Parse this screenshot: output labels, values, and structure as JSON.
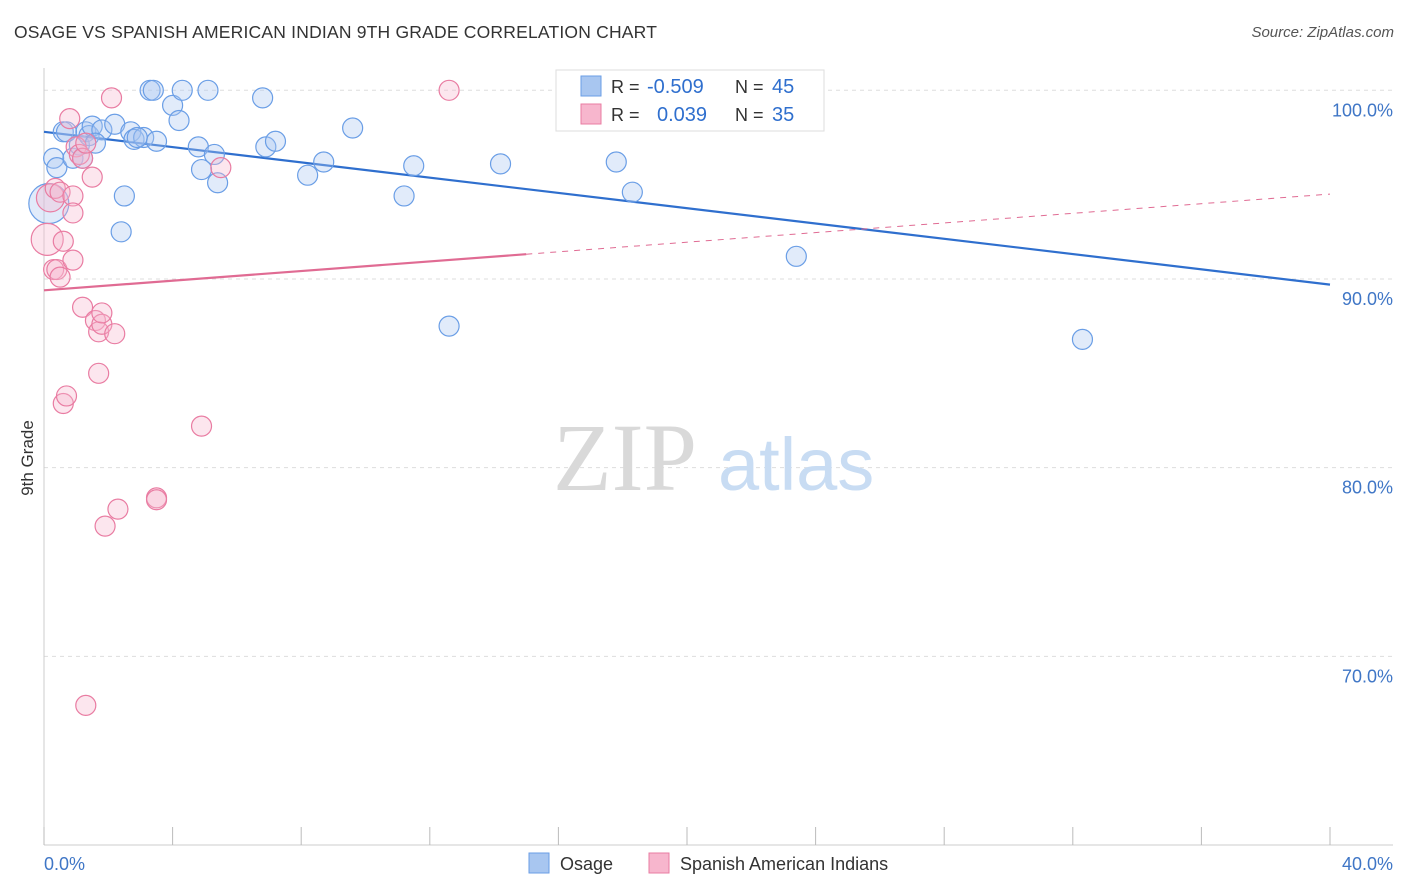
{
  "header": {
    "title": "OSAGE VS SPANISH AMERICAN INDIAN 9TH GRADE CORRELATION CHART",
    "source": "Source: ZipAtlas.com"
  },
  "colors": {
    "blue": "#6a9ee6",
    "blue_fill": "rgba(168,198,240,0.35)",
    "blue_line": "#2f6fce",
    "pink": "#e97ca2",
    "pink_fill": "rgba(247,182,205,0.35)",
    "pink_line": "#e06b93",
    "grid": "#dddddd",
    "axis_text": "#3f76c6"
  },
  "watermark": {
    "zip": "ZIP",
    "atlas": "atlas"
  },
  "legend": {
    "rows": [
      {
        "r_label": "R = ",
        "r_value": "-0.509",
        "n_label": "N = ",
        "n_value": "45"
      },
      {
        "r_label": "R = ",
        "r_value": "0.039",
        "n_label": "N = ",
        "n_value": "35"
      }
    ]
  },
  "chart_data": {
    "type": "scatter",
    "title": "OSAGE VS SPANISH AMERICAN INDIAN 9TH GRADE CORRELATION CHART",
    "xlabel": "",
    "ylabel": "9th Grade",
    "xlim": [
      0,
      40
    ],
    "ylim": [
      60,
      101.5
    ],
    "x_tick_labels": [
      "0.0%",
      "40.0%"
    ],
    "y_ticks": [
      70,
      80,
      90,
      100
    ],
    "y_tick_labels": [
      "70.0%",
      "80.0%",
      "90.0%",
      "100.0%"
    ],
    "grid": true,
    "legend_position": "top-center",
    "series": [
      {
        "name": "Osage",
        "color": "#6a9ee6",
        "trend": {
          "x0": 0,
          "y0": 97.8,
          "x1": 40,
          "y1": 89.7,
          "dash_from": null
        },
        "points": [
          [
            0.3,
            96.4
          ],
          [
            0.4,
            95.9
          ],
          [
            0.6,
            97.8
          ],
          [
            0.9,
            96.4
          ],
          [
            1.1,
            97.1
          ],
          [
            1.2,
            96.4
          ],
          [
            1.3,
            97.8
          ],
          [
            1.4,
            97.6
          ],
          [
            1.5,
            98.1
          ],
          [
            1.8,
            97.9
          ],
          [
            2.2,
            98.2
          ],
          [
            2.4,
            92.5
          ],
          [
            2.5,
            94.4
          ],
          [
            2.7,
            97.8
          ],
          [
            2.8,
            97.4
          ],
          [
            3.1,
            97.5
          ],
          [
            3.3,
            100.0
          ],
          [
            3.4,
            100.0
          ],
          [
            3.5,
            97.3
          ],
          [
            4.0,
            99.2
          ],
          [
            4.2,
            98.4
          ],
          [
            4.3,
            100.0
          ],
          [
            4.8,
            97.0
          ],
          [
            4.9,
            95.8
          ],
          [
            5.1,
            100.0
          ],
          [
            5.3,
            96.6
          ],
          [
            5.4,
            95.1
          ],
          [
            6.8,
            99.6
          ],
          [
            6.9,
            97.0
          ],
          [
            7.2,
            97.3
          ],
          [
            8.2,
            95.5
          ],
          [
            8.7,
            96.2
          ],
          [
            9.6,
            98.0
          ],
          [
            11.5,
            96.0
          ],
          [
            11.2,
            94.4
          ],
          [
            12.6,
            87.5
          ],
          [
            14.2,
            96.1
          ],
          [
            17.8,
            96.2
          ],
          [
            18.3,
            94.6
          ],
          [
            23.4,
            91.2
          ],
          [
            32.3,
            86.8
          ],
          [
            0.15,
            94.0
          ],
          [
            0.7,
            97.8
          ],
          [
            1.6,
            97.2
          ],
          [
            2.9,
            97.5
          ]
        ],
        "sizes": [
          10,
          10,
          10,
          10,
          10,
          10,
          10,
          10,
          10,
          10,
          10,
          10,
          10,
          10,
          10,
          10,
          10,
          10,
          10,
          10,
          10,
          10,
          10,
          10,
          10,
          10,
          10,
          10,
          10,
          10,
          10,
          10,
          10,
          10,
          10,
          10,
          10,
          10,
          10,
          10,
          10,
          20,
          10,
          10,
          10
        ]
      },
      {
        "name": "Spanish American Indians",
        "color": "#e97ca2",
        "trend": {
          "x0": 0,
          "y0": 89.4,
          "x1": 40,
          "y1": 94.5,
          "dash_from": 15
        },
        "points": [
          [
            0.1,
            92.1
          ],
          [
            0.2,
            94.3
          ],
          [
            0.3,
            90.5
          ],
          [
            0.35,
            94.8
          ],
          [
            0.4,
            90.5
          ],
          [
            0.5,
            94.6
          ],
          [
            0.5,
            90.1
          ],
          [
            0.6,
            92.0
          ],
          [
            0.6,
            83.4
          ],
          [
            0.7,
            83.8
          ],
          [
            0.8,
            98.5
          ],
          [
            0.9,
            94.4
          ],
          [
            0.9,
            93.5
          ],
          [
            0.9,
            91.0
          ],
          [
            1.0,
            97.0
          ],
          [
            1.1,
            96.6
          ],
          [
            1.2,
            96.4
          ],
          [
            1.3,
            97.2
          ],
          [
            1.2,
            88.5
          ],
          [
            1.5,
            95.4
          ],
          [
            1.6,
            87.8
          ],
          [
            1.7,
            87.2
          ],
          [
            1.7,
            85.0
          ],
          [
            1.8,
            87.6
          ],
          [
            1.8,
            88.2
          ],
          [
            1.9,
            76.9
          ],
          [
            2.1,
            99.6
          ],
          [
            2.2,
            87.1
          ],
          [
            2.3,
            77.8
          ],
          [
            3.5,
            78.4
          ],
          [
            3.5,
            78.3
          ],
          [
            4.9,
            82.2
          ],
          [
            5.5,
            95.9
          ],
          [
            12.6,
            100.0
          ],
          [
            1.3,
            67.4
          ]
        ],
        "sizes": [
          16,
          14,
          10,
          10,
          10,
          10,
          10,
          10,
          10,
          10,
          10,
          10,
          10,
          10,
          10,
          10,
          10,
          10,
          10,
          10,
          10,
          10,
          10,
          10,
          10,
          10,
          10,
          10,
          10,
          10,
          10,
          10,
          10,
          10,
          10
        ]
      }
    ]
  }
}
